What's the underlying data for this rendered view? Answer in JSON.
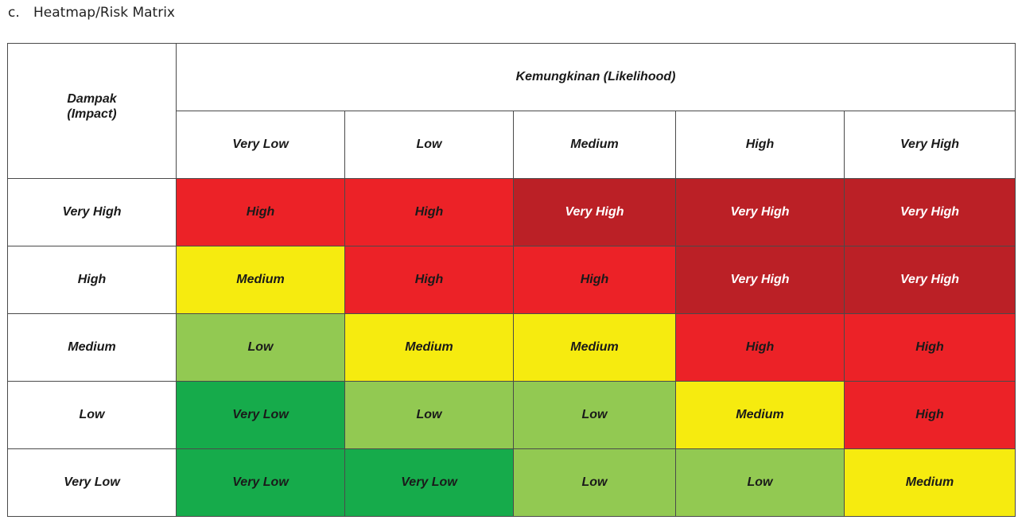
{
  "heading": {
    "marker": "c.",
    "text": "Heatmap/Risk Matrix"
  },
  "matrix": {
    "impact_title": "Dampak",
    "impact_title_en": "Impact",
    "likelihood_title": "Kemungkinan",
    "likelihood_title_en": "Likelihood",
    "likelihood_levels": [
      "Very Low",
      "Low",
      "Medium",
      "High",
      "Very High"
    ],
    "rows": [
      {
        "impact": "Very High",
        "cells": [
          "High",
          "High",
          "Very High",
          "Very High",
          "Very High"
        ]
      },
      {
        "impact": "High",
        "cells": [
          "Medium",
          "High",
          "High",
          "Very High",
          "Very High"
        ]
      },
      {
        "impact": "Medium",
        "cells": [
          "Low",
          "Medium",
          "Medium",
          "High",
          "High"
        ]
      },
      {
        "impact": "Low",
        "cells": [
          "Very Low",
          "Low",
          "Low",
          "Medium",
          "High"
        ]
      },
      {
        "impact": "Very Low",
        "cells": [
          "Very Low",
          "Very Low",
          "Low",
          "Low",
          "Medium"
        ]
      }
    ],
    "level_colors": {
      "Very High": "#bb2026",
      "High": "#ec2227",
      "Medium": "#f6eb0f",
      "Low": "#92c952",
      "Very Low": "#16ab4b"
    }
  }
}
